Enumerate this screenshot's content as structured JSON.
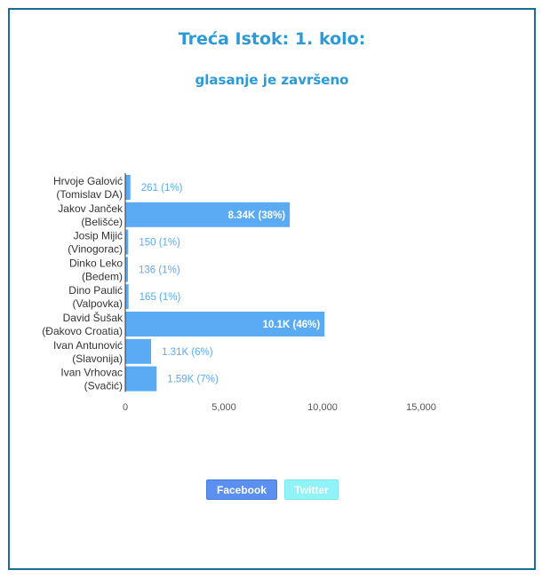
{
  "header": {
    "title": "Treća Istok: 1. kolo:",
    "subtitle": "glasanje je završeno"
  },
  "share": {
    "facebook_label": "Facebook",
    "twitter_label": "Twitter"
  },
  "colors": {
    "accent": "#2a9ad8",
    "bar": "#5aabf4",
    "frame": "#1b6e93",
    "facebook": "#5b8ff0",
    "twitter": "#8ff3f7"
  },
  "chart_data": {
    "type": "bar",
    "orientation": "horizontal",
    "categories": [
      [
        "Hrvoje Galović",
        "(Tomislav DA)"
      ],
      [
        "Jakov Janček",
        "(Belišće)"
      ],
      [
        "Josip Mijić",
        "(Vinogorac)"
      ],
      [
        "Dinko Leko",
        "(Bedem)"
      ],
      [
        "Dino Paulić",
        "(Valpovka)"
      ],
      [
        "David Šušak",
        "(Đakovo Croatia)"
      ],
      [
        "Ivan Antunović",
        "(Slavonija)"
      ],
      [
        "Ivan Vrhovac",
        "(Svačić)"
      ]
    ],
    "values": [
      261,
      8340,
      150,
      136,
      165,
      10100,
      1310,
      1590
    ],
    "data_labels": [
      "261 (1%)",
      "8.34K (38%)",
      "150 (1%)",
      "136 (1%)",
      "165 (1%)",
      "10.1K (46%)",
      "1.31K (6%)",
      "1.59K (7%)"
    ],
    "label_inside": [
      false,
      true,
      false,
      false,
      false,
      true,
      false,
      false
    ],
    "x_ticks": [
      0,
      5000,
      10000,
      15000
    ],
    "x_tick_labels": [
      "0",
      "5,000",
      "10,000",
      "15,000"
    ],
    "xlim": [
      0,
      15000
    ],
    "grid": false,
    "legend": "none"
  }
}
